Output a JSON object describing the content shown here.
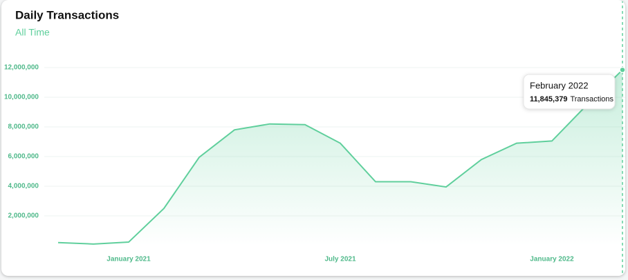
{
  "chart_data": {
    "type": "area",
    "title": "Daily Transactions",
    "subtitle": "All Time",
    "categories": [
      null,
      null,
      "January 2021",
      null,
      null,
      null,
      null,
      null,
      "July 2021",
      null,
      null,
      null,
      null,
      null,
      "January 2022",
      null,
      null
    ],
    "values": [
      200000,
      100000,
      230000,
      2500000,
      5950000,
      7800000,
      8200000,
      8150000,
      6900000,
      4300000,
      4300000,
      3950000,
      5800000,
      6900000,
      7050000,
      9500000,
      11845379
    ],
    "value_labels": [
      null,
      null,
      null,
      null,
      null,
      null,
      null,
      null,
      null,
      null,
      null,
      null,
      null,
      null,
      null,
      null,
      "11,845,379"
    ],
    "color": "#5fcf9c",
    "ylim": [
      0,
      13000000
    ],
    "yticks": [
      {
        "value": 2000000,
        "label": "2,000,000"
      },
      {
        "value": 4000000,
        "label": "4,000,000"
      },
      {
        "value": 6000000,
        "label": "6,000,000"
      },
      {
        "value": 8000000,
        "label": "8,000,000"
      },
      {
        "value": 10000000,
        "label": "10,000,000"
      },
      {
        "value": 12000000,
        "label": "12,000,000"
      }
    ],
    "grid": true,
    "tooltip": {
      "title": "February 2022",
      "unit": "Transactions"
    }
  }
}
